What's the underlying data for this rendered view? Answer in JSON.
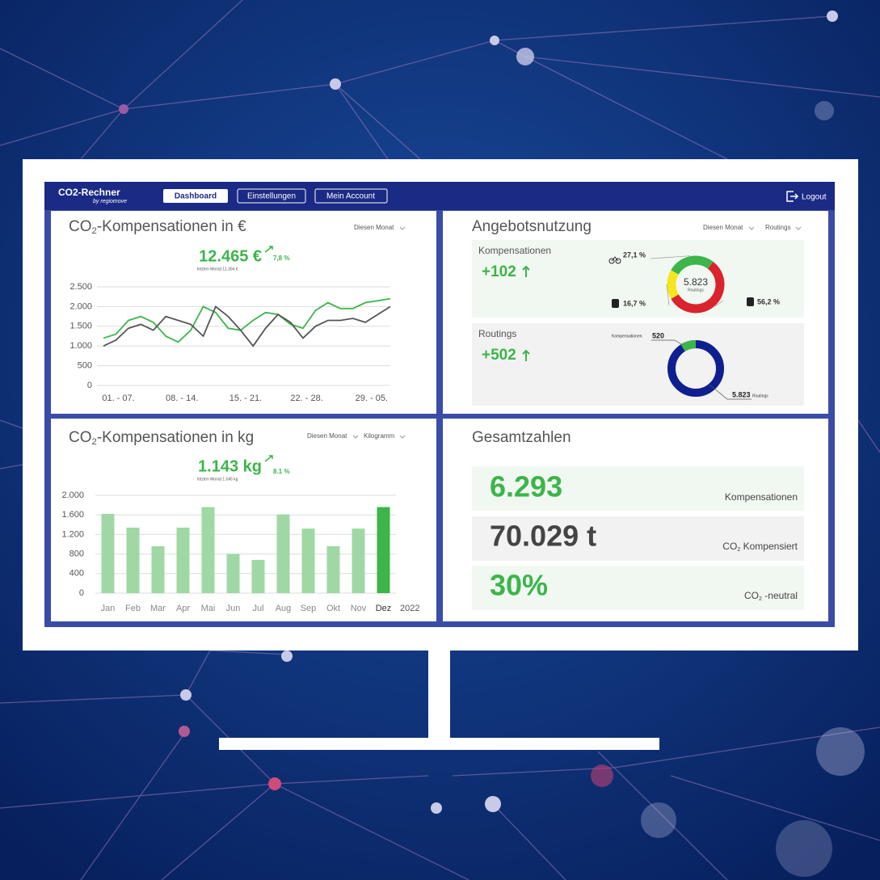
{
  "header": {
    "app_title": "CO2-Rechner",
    "app_subtitle": "by regiomove",
    "nav": [
      "Dashboard",
      "Einstellungen",
      "Mein Account"
    ],
    "logout": "Logout"
  },
  "panels": {
    "euro": {
      "title_prefix": "CO",
      "title_sub": "2",
      "title_suffix": "-Kompensationen in €",
      "filter": "Diesen Monat",
      "kpi": "12.465 €",
      "change": "7,8 %",
      "previous": "letzten Monat 11.304 €"
    },
    "usage": {
      "title": "Angebotsnutzung",
      "filters": [
        "Diesen Monat",
        "Routings"
      ],
      "compensations": {
        "label": "Kompensationen",
        "delta": "+102"
      },
      "routings": {
        "label": "Routings",
        "delta": "+502"
      }
    },
    "kg": {
      "title_prefix": "CO",
      "title_sub": "2",
      "title_suffix": "-Kompensationen in kg",
      "filters": [
        "Diesen Monat",
        "Kilogramm"
      ],
      "kpi": "1.143 kg",
      "change": "8.1 %",
      "previous": "letzten Monat 1.045 kg",
      "year": "2022"
    },
    "totals": {
      "title": "Gesamtzahlen",
      "rows": [
        {
          "value": "6.293",
          "label": "Kompensationen"
        },
        {
          "value": "70.029 t",
          "label_prefix": "CO",
          "label_sub": "2",
          "label_suffix": " Kompensiert"
        },
        {
          "value": "30%",
          "label_prefix": "CO",
          "label_sub": "2",
          "label_suffix": " -neutral"
        }
      ]
    }
  },
  "chart_data": [
    {
      "type": "line",
      "x": [
        0,
        1,
        2,
        3,
        4,
        5,
        6,
        7,
        8,
        9,
        10,
        11,
        12,
        13,
        14,
        15,
        16,
        17,
        18,
        19,
        20,
        21,
        22,
        23
      ],
      "xlim": [
        0,
        23
      ],
      "xticks": [
        {
          "value": 1.2,
          "label": "01. - 07."
        },
        {
          "value": 6.3,
          "label": "08. - 14."
        },
        {
          "value": 11.4,
          "label": "15. - 21."
        },
        {
          "value": 16.3,
          "label": "22. - 28."
        },
        {
          "value": 21.5,
          "label": "29. - 05."
        }
      ],
      "ylim": [
        0,
        2500
      ],
      "yticks": [
        0,
        500,
        {
          "value": 1000,
          "label": "1.000"
        },
        {
          "value": 1500,
          "label": "1.500"
        },
        {
          "value": 2000,
          "label": "2.000"
        },
        {
          "value": 2500,
          "label": "2.500"
        }
      ],
      "grid": true,
      "series": [
        {
          "color": "#3cb54a",
          "values": [
            1200,
            1300,
            1650,
            1750,
            1600,
            1250,
            1100,
            1400,
            2000,
            1850,
            1450,
            1400,
            1650,
            1850,
            1800,
            1550,
            1450,
            1900,
            2100,
            1950,
            1950,
            2100,
            2150,
            2200
          ]
        },
        {
          "color": "#555555",
          "values": [
            1000,
            1150,
            1450,
            1550,
            1400,
            1750,
            1650,
            1550,
            1250,
            2000,
            1750,
            1400,
            1000,
            1450,
            1800,
            1600,
            1200,
            1500,
            1650,
            1650,
            1700,
            1600,
            1800,
            2000
          ]
        }
      ]
    },
    {
      "type": "bar",
      "categories": [
        "Jan",
        "Feb",
        "Mar",
        "Apr",
        "Mai",
        "Jun",
        "Jul",
        "Aug",
        "Sep",
        "Okt",
        "Nov",
        "Dez"
      ],
      "values": [
        1620,
        1340,
        960,
        1340,
        1760,
        800,
        680,
        1610,
        1320,
        960,
        1320,
        1760
      ],
      "colors": [
        "#9fd8a5",
        "#9fd8a5",
        "#9fd8a5",
        "#9fd8a5",
        "#9fd8a5",
        "#9fd8a5",
        "#9fd8a5",
        "#9fd8a5",
        "#9fd8a5",
        "#9fd8a5",
        "#9fd8a5",
        "#3cb54a"
      ],
      "ylim": [
        0,
        2000
      ],
      "yticks": [
        0,
        400,
        800,
        {
          "value": 1200,
          "label": "1.200"
        },
        {
          "value": 1600,
          "label": "1.600"
        },
        {
          "value": 2000,
          "label": "2.000"
        }
      ],
      "grid": true
    },
    {
      "type": "pie",
      "values": [
        27.1,
        56.2,
        16.7
      ],
      "value_labels": [
        "27,1 %",
        "56,2 %",
        "16,7 %"
      ],
      "colors": [
        "#3cb54a",
        "#d9232d",
        "#f5e61f"
      ],
      "center_value": "5.823",
      "center_label": "Routings"
    },
    {
      "type": "pie",
      "categories": [
        "Kompensationen",
        "Routings"
      ],
      "values": [
        520,
        5823
      ],
      "value_labels": [
        "520",
        "5.823"
      ],
      "colors": [
        "#3cb54a",
        "#0f1f8f"
      ]
    }
  ]
}
